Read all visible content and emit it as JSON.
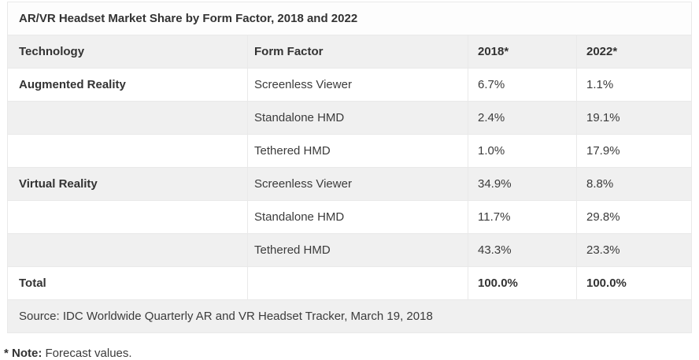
{
  "chart_data": {
    "type": "table",
    "title": "AR/VR Headset Market Share by Form Factor, 2018 and 2022",
    "columns": [
      "Technology",
      "Form Factor",
      "2018*",
      "2022*"
    ],
    "rows": [
      {
        "technology": "Augmented Reality",
        "form_factor": "Screenless Viewer",
        "y2018": "6.7%",
        "y2022": "1.1%"
      },
      {
        "technology": "",
        "form_factor": "Standalone HMD",
        "y2018": "2.4%",
        "y2022": "19.1%"
      },
      {
        "technology": "",
        "form_factor": "Tethered HMD",
        "y2018": "1.0%",
        "y2022": "17.9%"
      },
      {
        "technology": "Virtual Reality",
        "form_factor": "Screenless Viewer",
        "y2018": "34.9%",
        "y2022": "8.8%"
      },
      {
        "technology": "",
        "form_factor": "Standalone HMD",
        "y2018": "11.7%",
        "y2022": "29.8%"
      },
      {
        "technology": "",
        "form_factor": "Tethered HMD",
        "y2018": "43.3%",
        "y2022": "23.3%"
      }
    ],
    "total_row": {
      "label": "Total",
      "form_factor": "",
      "y2018": "100.0%",
      "y2022": "100.0%"
    },
    "source_note": "Source: IDC Worldwide Quarterly AR and VR Headset Tracker, March 19, 2018"
  },
  "footnote": {
    "marker": "* Note:",
    "text": "Forecast values."
  },
  "colors": {
    "row_alt_bg": "#f0f0f0",
    "header_bg": "#f0f0f0",
    "cell_border": "#e9e9e9",
    "table_top_border": "#d4d4d4",
    "text": "#3b3b3b",
    "bold_text": "#333333",
    "page_bg": "#ffffff"
  }
}
